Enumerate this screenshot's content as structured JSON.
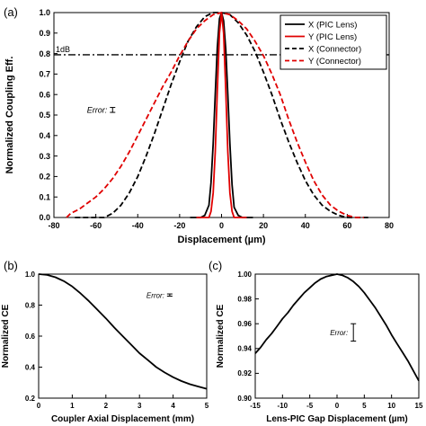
{
  "chart_data": [
    {
      "panel_label": "(a)",
      "type": "line",
      "xlabel": "Displacement (µm)",
      "ylabel": "Normalized Coupling Eff.",
      "xlim": [
        -80,
        80
      ],
      "ylim": [
        0.0,
        1.0
      ],
      "xticks": [
        "-80",
        "-60",
        "-40",
        "-20",
        "0",
        "20",
        "40",
        "60",
        "80"
      ],
      "yticks": [
        "0.0",
        "0.1",
        "0.2",
        "0.3",
        "0.4",
        "0.5",
        "0.6",
        "0.7",
        "0.8",
        "0.9",
        "1.0"
      ],
      "annotations": {
        "threshold_label": "1dB",
        "threshold_y": 0.794,
        "error_label": "Error:",
        "error_x": -52,
        "error_y": 0.525,
        "error_halfwidth": 0.012
      },
      "legend_position": "top-right",
      "series": [
        {
          "name": "X (PIC Lens)",
          "color": "#000000",
          "dash": "solid",
          "x": [
            -15,
            -10,
            -8,
            -6,
            -5,
            -4,
            -3,
            -2,
            -1,
            0,
            1,
            2,
            3,
            4,
            5,
            6,
            8,
            10,
            15
          ],
          "y": [
            0.0,
            0.0,
            0.01,
            0.06,
            0.17,
            0.36,
            0.6,
            0.83,
            0.97,
            1.0,
            0.96,
            0.82,
            0.6,
            0.36,
            0.16,
            0.05,
            0.01,
            0.0,
            0.0
          ]
        },
        {
          "name": "Y (PIC Lens)",
          "color": "#e00000",
          "dash": "solid",
          "x": [
            -12,
            -6,
            -5,
            -4,
            -3,
            -2,
            -1,
            0,
            1,
            2,
            3,
            4,
            5,
            6,
            12
          ],
          "y": [
            0.0,
            0.0,
            0.03,
            0.12,
            0.32,
            0.62,
            0.9,
            1.0,
            0.9,
            0.62,
            0.32,
            0.12,
            0.03,
            0.0,
            0.0
          ]
        },
        {
          "name": "X (Connector)",
          "color": "#000000",
          "dash": "dashed",
          "x": [
            -70,
            -56,
            -52,
            -48,
            -44,
            -40,
            -36,
            -32,
            -28,
            -24,
            -20,
            -16,
            -12,
            -8,
            -4,
            0,
            4,
            8,
            12,
            16,
            20,
            24,
            28,
            32,
            36,
            40,
            44,
            48,
            52,
            56,
            60,
            70
          ],
          "y": [
            0.0,
            0.0,
            0.02,
            0.06,
            0.12,
            0.2,
            0.3,
            0.41,
            0.53,
            0.65,
            0.76,
            0.86,
            0.93,
            0.98,
            1.0,
            1.0,
            0.99,
            0.95,
            0.89,
            0.81,
            0.71,
            0.6,
            0.48,
            0.37,
            0.27,
            0.18,
            0.11,
            0.06,
            0.03,
            0.01,
            0.0,
            0.0
          ]
        },
        {
          "name": "Y (Connector)",
          "color": "#e00000",
          "dash": "dashed",
          "x": [
            -74,
            -72,
            -68,
            -64,
            -60,
            -56,
            -52,
            -48,
            -44,
            -40,
            -36,
            -32,
            -28,
            -24,
            -20,
            -16,
            -12,
            -8,
            -4,
            0,
            4,
            8,
            12,
            16,
            20,
            24,
            28,
            32,
            36,
            40,
            44,
            48,
            52,
            56,
            60,
            64,
            68
          ],
          "y": [
            0.0,
            0.02,
            0.04,
            0.07,
            0.1,
            0.14,
            0.19,
            0.25,
            0.32,
            0.4,
            0.48,
            0.56,
            0.64,
            0.71,
            0.79,
            0.86,
            0.92,
            0.96,
            0.99,
            1.0,
            0.99,
            0.96,
            0.92,
            0.86,
            0.79,
            0.7,
            0.6,
            0.48,
            0.37,
            0.27,
            0.18,
            0.11,
            0.06,
            0.03,
            0.01,
            0.0,
            0.0
          ]
        }
      ]
    },
    {
      "panel_label": "(b)",
      "type": "line",
      "xlabel": "Coupler Axial Displacement (mm)",
      "ylabel": "Normalized CE",
      "xlim": [
        0,
        5
      ],
      "ylim": [
        0.2,
        1.0
      ],
      "xticks": [
        "0",
        "1",
        "2",
        "3",
        "4",
        "5"
      ],
      "yticks": [
        "0.2",
        "0.4",
        "0.6",
        "0.8",
        "1.0"
      ],
      "annotations": {
        "error_label": "Error:",
        "error_x": 3.9,
        "error_y": 0.865,
        "error_halfwidth": 0.007
      },
      "series": [
        {
          "name": "",
          "color": "#000000",
          "dash": "solid",
          "x": [
            0,
            0.25,
            0.5,
            0.75,
            1,
            1.25,
            1.5,
            1.75,
            2,
            2.25,
            2.5,
            2.75,
            3,
            3.25,
            3.5,
            3.75,
            4,
            4.25,
            4.5,
            4.75,
            5
          ],
          "y": [
            1.0,
            0.995,
            0.98,
            0.955,
            0.92,
            0.875,
            0.825,
            0.77,
            0.715,
            0.655,
            0.6,
            0.545,
            0.49,
            0.445,
            0.4,
            0.365,
            0.335,
            0.31,
            0.29,
            0.275,
            0.26
          ]
        }
      ]
    },
    {
      "panel_label": "(c)",
      "type": "line",
      "xlabel": "Lens-PIC Gap Displacement (µm)",
      "ylabel": "Normalized CE",
      "xlim": [
        -15,
        15
      ],
      "ylim": [
        0.9,
        1.0
      ],
      "xticks": [
        "-15",
        "-10",
        "-5",
        "0",
        "5",
        "10",
        "15"
      ],
      "yticks": [
        "0.90",
        "0.92",
        "0.94",
        "0.96",
        "0.98",
        "1.00"
      ],
      "annotations": {
        "error_label": "Error:",
        "error_x": 3,
        "error_y": 0.953,
        "error_halfwidth": 0.007
      },
      "series": [
        {
          "name": "",
          "color": "#000000",
          "dash": "solid",
          "x": [
            -15,
            -14,
            -13,
            -12,
            -11,
            -10,
            -9,
            -8,
            -7,
            -6,
            -5,
            -4,
            -3,
            -2,
            -1,
            0,
            1,
            2,
            3,
            4,
            5,
            6,
            7,
            8,
            9,
            10,
            11,
            12,
            13,
            14,
            15
          ],
          "y": [
            0.936,
            0.941,
            0.947,
            0.952,
            0.958,
            0.964,
            0.969,
            0.975,
            0.98,
            0.985,
            0.989,
            0.993,
            0.996,
            0.998,
            0.999,
            1.0,
            0.999,
            0.997,
            0.994,
            0.99,
            0.985,
            0.979,
            0.973,
            0.966,
            0.959,
            0.951,
            0.944,
            0.937,
            0.93,
            0.922,
            0.914
          ]
        }
      ]
    }
  ]
}
